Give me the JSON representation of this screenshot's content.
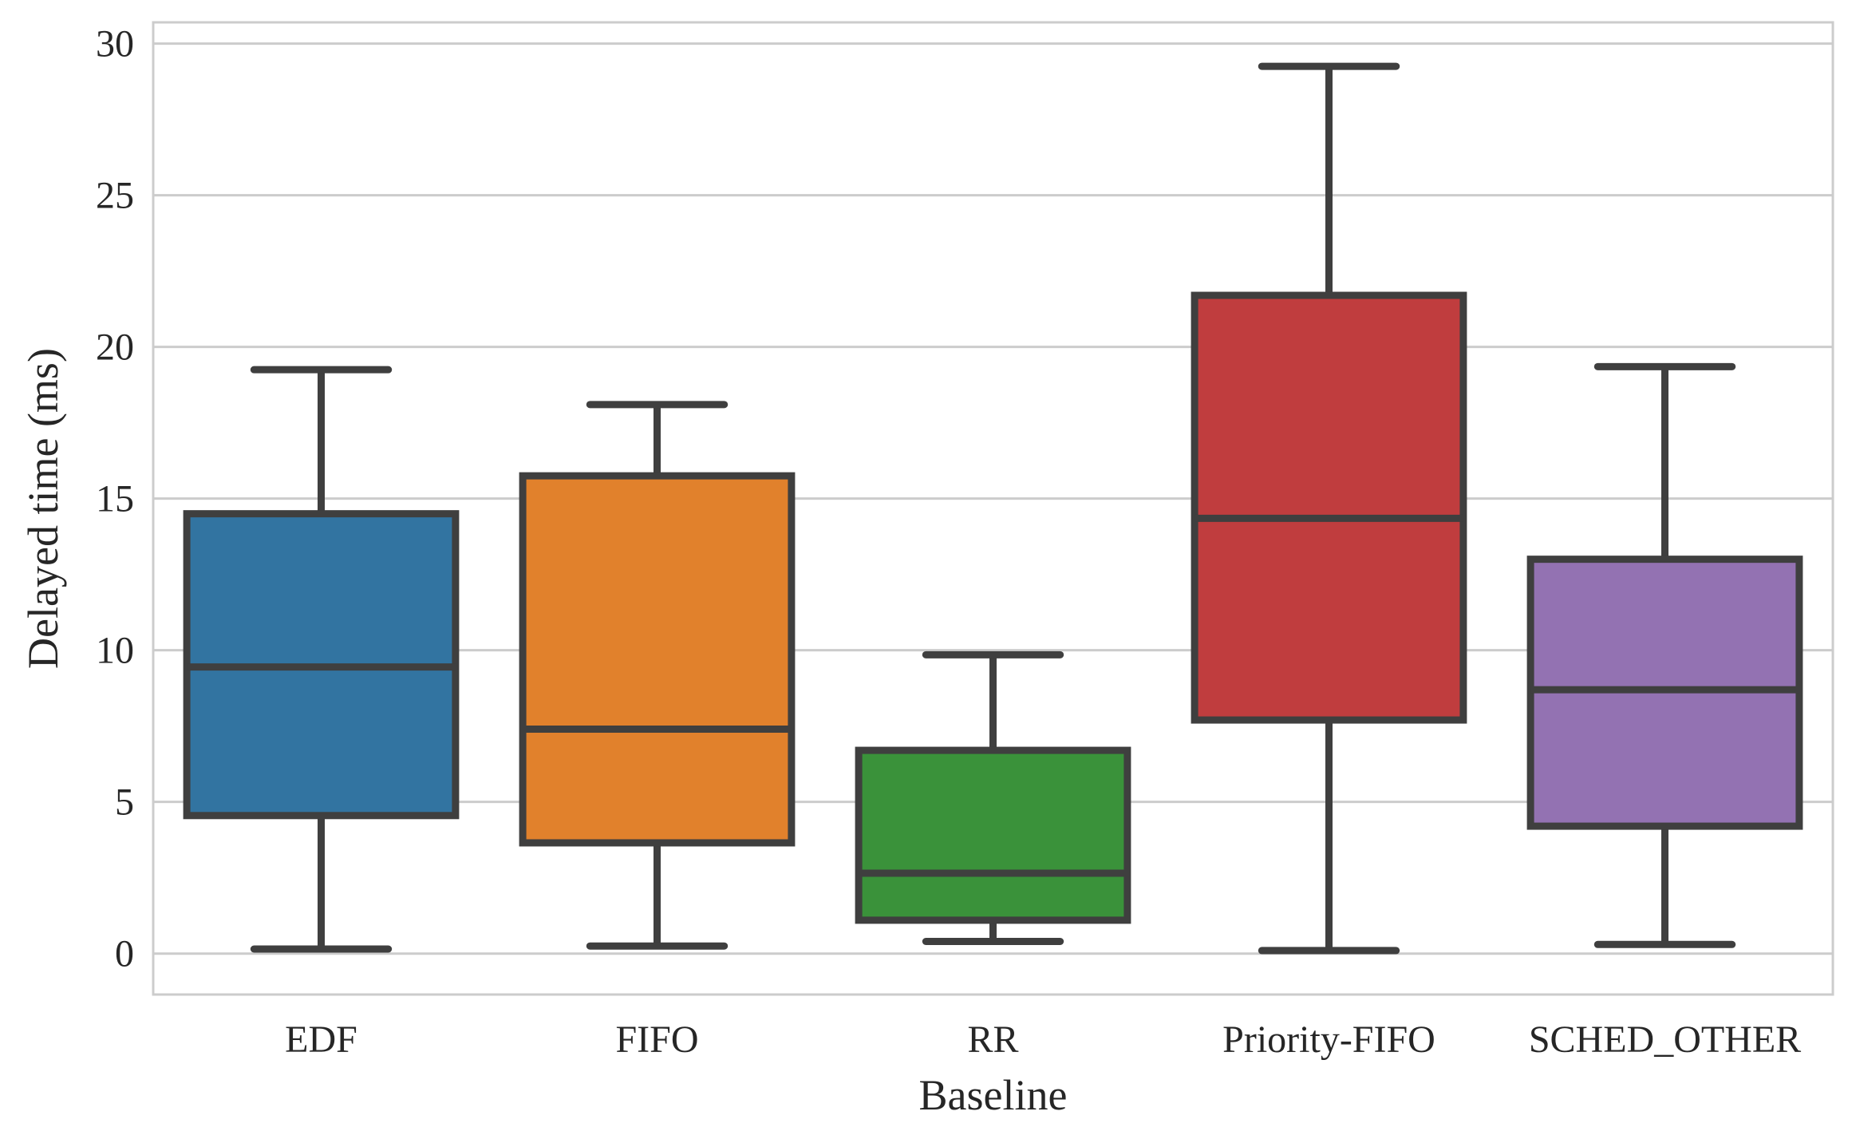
{
  "chart_data": {
    "type": "box",
    "xlabel": "Baseline",
    "ylabel": "Delayed time (ms)",
    "ylim": [
      -1.35,
      30.7
    ],
    "yticks": [
      0,
      5,
      10,
      15,
      20,
      25,
      30
    ],
    "grid": "horizontal",
    "categories": [
      "EDF",
      "FIFO",
      "RR",
      "Priority-FIFO",
      "SCHED_OTHER"
    ],
    "boxes": [
      {
        "category": "EDF",
        "whisker_low": 0.15,
        "q1": 4.55,
        "median": 9.45,
        "q3": 14.5,
        "whisker_high": 19.25,
        "color": "#3274a1"
      },
      {
        "category": "FIFO",
        "whisker_low": 0.25,
        "q1": 3.65,
        "median": 7.4,
        "q3": 15.75,
        "whisker_high": 18.1,
        "color": "#e1812c"
      },
      {
        "category": "RR",
        "whisker_low": 0.4,
        "q1": 1.1,
        "median": 2.65,
        "q3": 6.7,
        "whisker_high": 9.85,
        "color": "#3a923a"
      },
      {
        "category": "Priority-FIFO",
        "whisker_low": 0.1,
        "q1": 7.7,
        "median": 14.35,
        "q3": 21.7,
        "whisker_high": 29.25,
        "color": "#c03d3e"
      },
      {
        "category": "SCHED_OTHER",
        "whisker_low": 0.3,
        "q1": 4.2,
        "median": 8.7,
        "q3": 13.0,
        "whisker_high": 19.35,
        "color": "#9372b2"
      }
    ]
  }
}
